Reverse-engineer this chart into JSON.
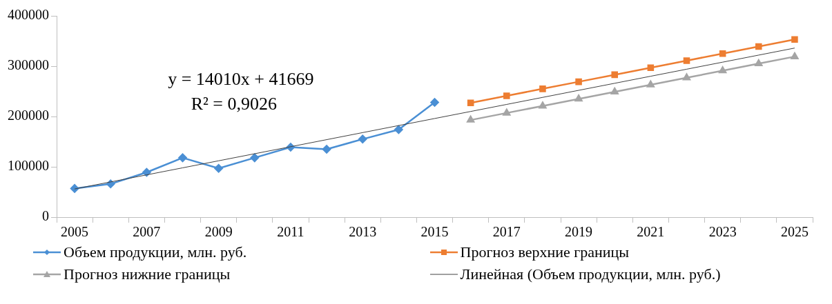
{
  "chart_data": {
    "type": "line",
    "categories": [
      "2005",
      null,
      "2007",
      null,
      "2009",
      null,
      "2011",
      null,
      "2013",
      null,
      "2015",
      null,
      "2017",
      null,
      "2019",
      null,
      "2021",
      null,
      "2023",
      null,
      "2025"
    ],
    "ylim": [
      0,
      400000
    ],
    "yticks": [
      0,
      100000,
      200000,
      300000,
      400000
    ],
    "grid": false,
    "legend": "bottom",
    "annotations": [
      "y = 14010x + 41669",
      "R² = 0,9026"
    ],
    "series": [
      {
        "name": "Объем продукции, млн. руб.",
        "color": "#4a8fd4",
        "marker": "diamond",
        "values": [
          57000,
          66000,
          89000,
          118000,
          97000,
          118000,
          139000,
          135000,
          155000,
          174000,
          228000,
          null,
          null,
          null,
          null,
          null,
          null,
          null,
          null,
          null,
          null
        ]
      },
      {
        "name": "Прогноз верхние границы",
        "color": "#ed7d31",
        "marker": "square",
        "values": [
          null,
          null,
          null,
          null,
          null,
          null,
          null,
          null,
          null,
          null,
          null,
          227000,
          241000,
          255000,
          269000,
          283000,
          297000,
          311000,
          325000,
          339000,
          353000
        ]
      },
      {
        "name": "Прогноз нижние границы",
        "color": "#a5a5a5",
        "marker": "triangle",
        "values": [
          null,
          null,
          null,
          null,
          null,
          null,
          null,
          null,
          null,
          null,
          null,
          193000,
          207000,
          221000,
          235000,
          249000,
          263000,
          277000,
          291000,
          305000,
          319000
        ]
      },
      {
        "name": "Линейная (Объем продукции, млн. руб.)",
        "color": "#404040",
        "marker": "none",
        "values": [
          56000,
          70000,
          84000,
          98000,
          112000,
          126000,
          140000,
          154000,
          168000,
          182000,
          196000,
          210000,
          224000,
          238000,
          252000,
          266000,
          280000,
          294000,
          308000,
          322000,
          336000
        ]
      }
    ]
  }
}
